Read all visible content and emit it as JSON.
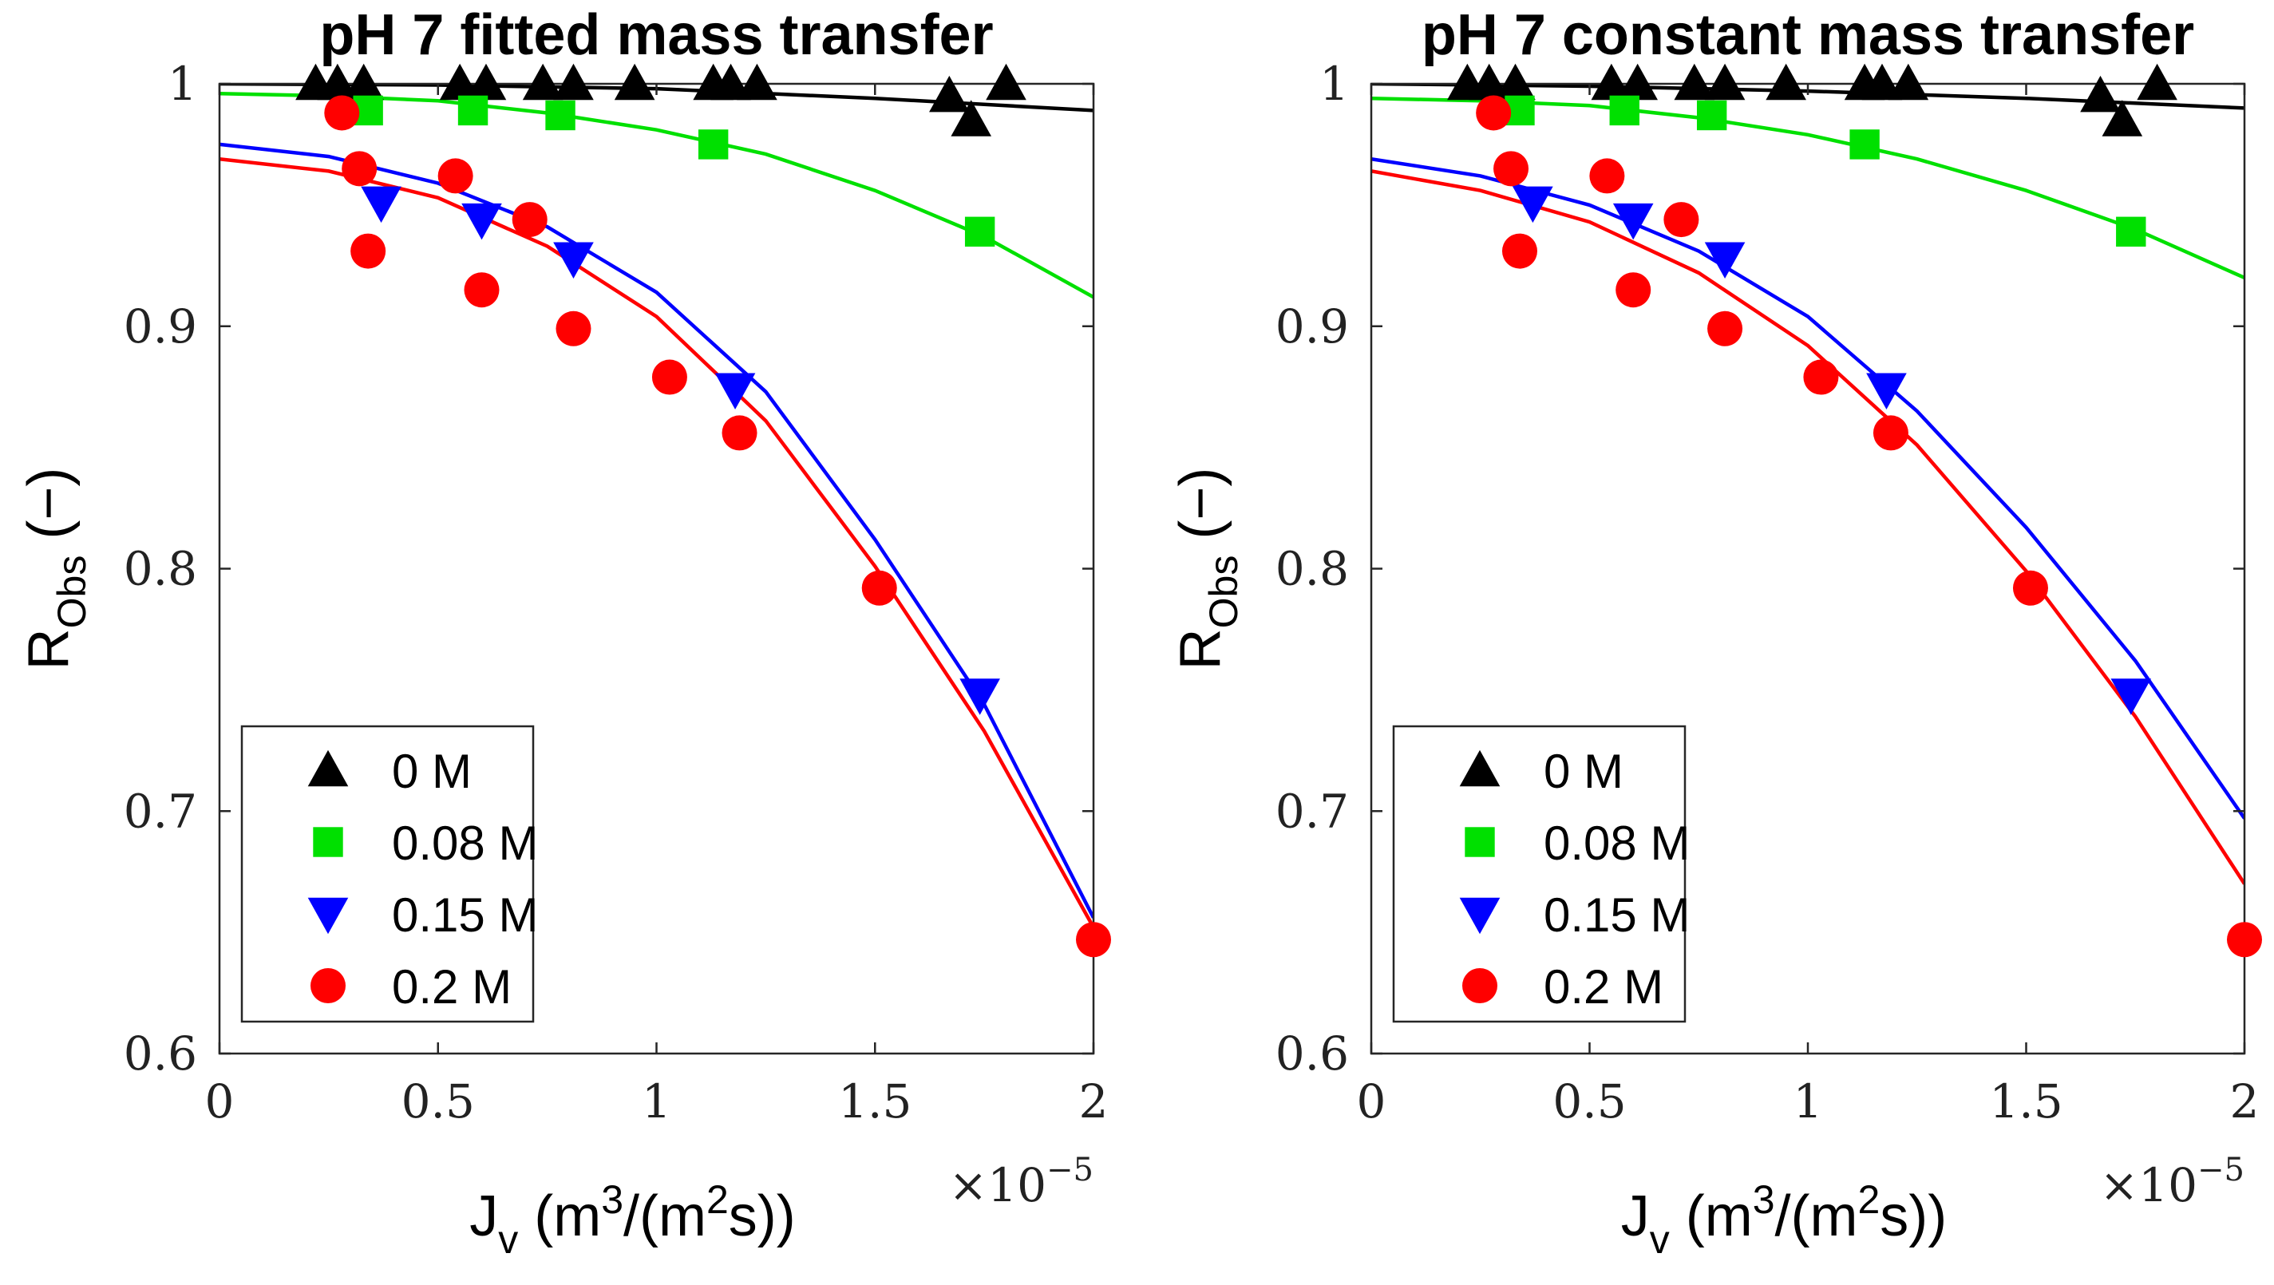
{
  "figure": {
    "exponent_base": "×10",
    "exponent_power": "−5",
    "xlabel_main": "J",
    "xlabel_sub": "v",
    "xlabel_units_pre": " (m",
    "xlabel_units_sup1": "3",
    "xlabel_units_mid": "/(m",
    "xlabel_units_sup2": "2",
    "xlabel_units_post": "s))",
    "ylabel_main": "R",
    "ylabel_sub": "Obs",
    "ylabel_units": " (−)"
  },
  "chart_data": [
    {
      "type": "scatter",
      "title": "pH 7 fitted mass transfer",
      "xlabel": "J_v (m^3/(m^2 s))",
      "ylabel": "R_Obs (−)",
      "x_scale_note": "×10^-5",
      "xlim": [
        0,
        2
      ],
      "ylim": [
        0.6,
        1.0
      ],
      "xticks": [
        0,
        0.5,
        1,
        1.5,
        2
      ],
      "xtick_labels": [
        "0",
        "0.5",
        "1",
        "1.5",
        "2"
      ],
      "yticks": [
        0.6,
        0.7,
        0.8,
        0.9,
        1.0
      ],
      "ytick_labels": [
        "0.6",
        "0.7",
        "0.8",
        "0.9",
        "1"
      ],
      "legend_position": "bottom-left",
      "series": [
        {
          "name": "0 M",
          "color": "#000000",
          "marker": "triangle-up",
          "points": [
            [
              0.22,
              1.0
            ],
            [
              0.27,
              1.0
            ],
            [
              0.33,
              1.0
            ],
            [
              0.55,
              1.0
            ],
            [
              0.61,
              1.0
            ],
            [
              0.74,
              1.0
            ],
            [
              0.81,
              1.0
            ],
            [
              0.95,
              1.0
            ],
            [
              1.13,
              1.0
            ],
            [
              1.17,
              1.0
            ],
            [
              1.23,
              1.0
            ],
            [
              1.67,
              0.995
            ],
            [
              1.72,
              0.985
            ],
            [
              1.8,
              1.0
            ]
          ],
          "fit": [
            [
              0,
              1.0
            ],
            [
              0.5,
              0.9995
            ],
            [
              1.0,
              0.998
            ],
            [
              1.5,
              0.994
            ],
            [
              2.0,
              0.989
            ]
          ]
        },
        {
          "name": "0.08 M",
          "color": "#00e000",
          "marker": "square",
          "points": [
            [
              0.34,
              0.989
            ],
            [
              0.58,
              0.989
            ],
            [
              0.78,
              0.987
            ],
            [
              1.13,
              0.975
            ],
            [
              1.74,
              0.939
            ]
          ],
          "fit": [
            [
              0,
              0.996
            ],
            [
              0.25,
              0.995
            ],
            [
              0.5,
              0.993
            ],
            [
              0.75,
              0.988
            ],
            [
              1.0,
              0.981
            ],
            [
              1.25,
              0.971
            ],
            [
              1.5,
              0.956
            ],
            [
              1.75,
              0.937
            ],
            [
              2.0,
              0.912
            ]
          ]
        },
        {
          "name": "0.15 M",
          "color": "#0000ff",
          "marker": "triangle-down",
          "points": [
            [
              0.37,
              0.951
            ],
            [
              0.6,
              0.944
            ],
            [
              0.81,
              0.928
            ],
            [
              1.18,
              0.874
            ],
            [
              1.74,
              0.748
            ]
          ],
          "fit": [
            [
              0,
              0.975
            ],
            [
              0.25,
              0.97
            ],
            [
              0.5,
              0.959
            ],
            [
              0.75,
              0.941
            ],
            [
              1.0,
              0.914
            ],
            [
              1.25,
              0.873
            ],
            [
              1.5,
              0.812
            ],
            [
              1.75,
              0.744
            ],
            [
              2.0,
              0.656
            ]
          ]
        },
        {
          "name": "0.2 M",
          "color": "#ff0000",
          "marker": "circle",
          "points": [
            [
              0.28,
              0.988
            ],
            [
              0.32,
              0.965
            ],
            [
              0.34,
              0.931
            ],
            [
              0.54,
              0.962
            ],
            [
              0.6,
              0.915
            ],
            [
              0.71,
              0.944
            ],
            [
              0.81,
              0.899
            ],
            [
              1.03,
              0.879
            ],
            [
              1.19,
              0.856
            ],
            [
              1.51,
              0.792
            ],
            [
              2.0,
              0.647
            ]
          ],
          "fit": [
            [
              0,
              0.969
            ],
            [
              0.25,
              0.964
            ],
            [
              0.5,
              0.953
            ],
            [
              0.75,
              0.933
            ],
            [
              1.0,
              0.904
            ],
            [
              1.25,
              0.861
            ],
            [
              1.5,
              0.801
            ],
            [
              1.75,
              0.733
            ],
            [
              2.0,
              0.652
            ]
          ]
        }
      ]
    },
    {
      "type": "scatter",
      "title": "pH 7 constant mass transfer",
      "xlabel": "J_v (m^3/(m^2 s))",
      "ylabel": "R_Obs (−)",
      "x_scale_note": "×10^-5",
      "xlim": [
        0,
        2
      ],
      "ylim": [
        0.6,
        1.0
      ],
      "xticks": [
        0,
        0.5,
        1,
        1.5,
        2
      ],
      "xtick_labels": [
        "0",
        "0.5",
        "1",
        "1.5",
        "2"
      ],
      "yticks": [
        0.6,
        0.7,
        0.8,
        0.9,
        1.0
      ],
      "ytick_labels": [
        "0.6",
        "0.7",
        "0.8",
        "0.9",
        "1"
      ],
      "legend_position": "bottom-left",
      "series": [
        {
          "name": "0 M",
          "color": "#000000",
          "marker": "triangle-up",
          "points": [
            [
              0.22,
              1.0
            ],
            [
              0.27,
              1.0
            ],
            [
              0.33,
              1.0
            ],
            [
              0.55,
              1.0
            ],
            [
              0.61,
              1.0
            ],
            [
              0.74,
              1.0
            ],
            [
              0.81,
              1.0
            ],
            [
              0.95,
              1.0
            ],
            [
              1.13,
              1.0
            ],
            [
              1.17,
              1.0
            ],
            [
              1.23,
              1.0
            ],
            [
              1.67,
              0.995
            ],
            [
              1.72,
              0.985
            ],
            [
              1.8,
              1.0
            ]
          ],
          "fit": [
            [
              0,
              1.0
            ],
            [
              0.5,
              0.999
            ],
            [
              1.0,
              0.997
            ],
            [
              1.5,
              0.994
            ],
            [
              2.0,
              0.99
            ]
          ]
        },
        {
          "name": "0.08 M",
          "color": "#00e000",
          "marker": "square",
          "points": [
            [
              0.34,
              0.989
            ],
            [
              0.58,
              0.989
            ],
            [
              0.78,
              0.987
            ],
            [
              1.13,
              0.975
            ],
            [
              1.74,
              0.939
            ]
          ],
          "fit": [
            [
              0,
              0.994
            ],
            [
              0.25,
              0.993
            ],
            [
              0.5,
              0.991
            ],
            [
              0.75,
              0.986
            ],
            [
              1.0,
              0.979
            ],
            [
              1.25,
              0.969
            ],
            [
              1.5,
              0.956
            ],
            [
              1.75,
              0.94
            ],
            [
              2.0,
              0.92
            ]
          ]
        },
        {
          "name": "0.15 M",
          "color": "#0000ff",
          "marker": "triangle-down",
          "points": [
            [
              0.37,
              0.951
            ],
            [
              0.6,
              0.944
            ],
            [
              0.81,
              0.928
            ],
            [
              1.18,
              0.874
            ],
            [
              1.74,
              0.748
            ]
          ],
          "fit": [
            [
              0,
              0.969
            ],
            [
              0.25,
              0.962
            ],
            [
              0.5,
              0.95
            ],
            [
              0.75,
              0.931
            ],
            [
              1.0,
              0.904
            ],
            [
              1.25,
              0.865
            ],
            [
              1.5,
              0.817
            ],
            [
              1.75,
              0.762
            ],
            [
              2.0,
              0.697
            ]
          ]
        },
        {
          "name": "0.2 M",
          "color": "#ff0000",
          "marker": "circle",
          "points": [
            [
              0.28,
              0.988
            ],
            [
              0.32,
              0.965
            ],
            [
              0.34,
              0.931
            ],
            [
              0.54,
              0.962
            ],
            [
              0.6,
              0.915
            ],
            [
              0.71,
              0.944
            ],
            [
              0.81,
              0.899
            ],
            [
              1.03,
              0.879
            ],
            [
              1.19,
              0.856
            ],
            [
              1.51,
              0.792
            ],
            [
              2.0,
              0.647
            ]
          ],
          "fit": [
            [
              0,
              0.964
            ],
            [
              0.25,
              0.956
            ],
            [
              0.5,
              0.943
            ],
            [
              0.75,
              0.922
            ],
            [
              1.0,
              0.892
            ],
            [
              1.25,
              0.851
            ],
            [
              1.5,
              0.799
            ],
            [
              1.75,
              0.739
            ],
            [
              2.0,
              0.67
            ]
          ]
        }
      ]
    }
  ]
}
